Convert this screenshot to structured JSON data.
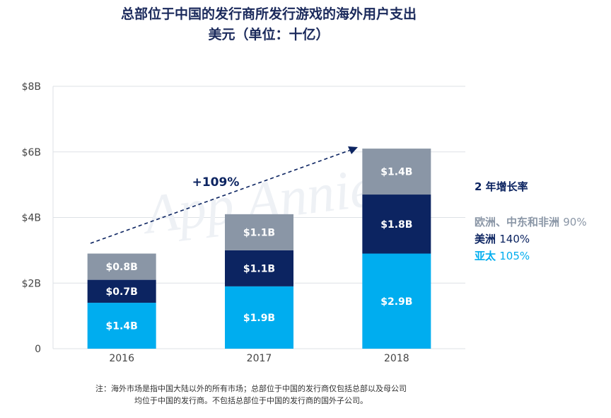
{
  "title": "总部位于中国的发行商所发行游戏的海外用户支出",
  "subtitle": "美元（单位：十亿）",
  "chart_data": {
    "type": "bar",
    "stacked": true,
    "categories": [
      "2016",
      "2017",
      "2018"
    ],
    "series": [
      {
        "name": "亚太",
        "values": [
          1.4,
          1.9,
          2.9
        ],
        "labels": [
          "$1.4B",
          "$1.9B",
          "$2.9B"
        ],
        "color": "#00adef"
      },
      {
        "name": "美洲",
        "values": [
          0.7,
          1.1,
          1.8
        ],
        "labels": [
          "$0.7B",
          "$1.1B",
          "$1.8B"
        ],
        "color": "#0c2461"
      },
      {
        "name": "欧洲、中东和非洲",
        "values": [
          0.8,
          1.1,
          1.4
        ],
        "labels": [
          "$0.8B",
          "$1.1B",
          "$1.4B"
        ],
        "color": "#8a96a6"
      }
    ],
    "y_ticks": [
      "0",
      "$2B",
      "$4B",
      "$6B",
      "$8B"
    ],
    "ylim": [
      0,
      8
    ],
    "grid": true,
    "annotation": "+109%"
  },
  "legend": {
    "heading": "2 年增长率",
    "items": [
      {
        "name": "欧洲、中东和非洲",
        "pct": "90%",
        "color": "#8a96a6"
      },
      {
        "name": "美洲",
        "pct": "140%",
        "color": "#0c2461"
      },
      {
        "name": "亚太",
        "pct": "105%",
        "color": "#00adef"
      }
    ]
  },
  "watermark": "App Annie",
  "note": {
    "line1": "注：海外市场是指中国大陆以外的所有市场；总部位于中国的发行商仅包括总部以及母公司",
    "line2": "均位于中国的发行商。不包括总部位于中国的发行商的国外子公司。"
  }
}
